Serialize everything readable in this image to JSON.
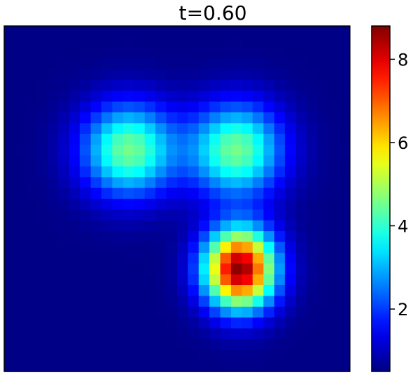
{
  "chart_data": {
    "type": "heatmap",
    "title": "t=0.60",
    "grid_size": [
      32,
      32
    ],
    "x_range": [
      0,
      31
    ],
    "y_range": [
      0,
      31
    ],
    "grid": false,
    "colormap": "jet",
    "colorbar": {
      "vmin": 0.5,
      "vmax": 8.8,
      "ticks": [
        2,
        4,
        6,
        8
      ],
      "tick_labels": [
        "2",
        "4",
        "6",
        "8"
      ],
      "placement": "right"
    },
    "background_value": 0.55,
    "blobs": [
      {
        "cx": 11,
        "cy": 11,
        "amplitude": 4.0,
        "sigma": 3.0
      },
      {
        "cx": 21,
        "cy": 11,
        "amplitude": 4.0,
        "sigma": 3.0
      },
      {
        "cx": 21.3,
        "cy": 22,
        "amplitude": 8.2,
        "sigma_x": 2.3,
        "sigma_y": 2.6
      }
    ]
  }
}
